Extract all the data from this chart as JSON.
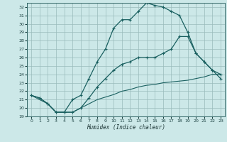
{
  "xlabel": "Humidex (Indice chaleur)",
  "xlim": [
    -0.5,
    23.5
  ],
  "ylim": [
    19,
    32.5
  ],
  "yticks": [
    19,
    20,
    21,
    22,
    23,
    24,
    25,
    26,
    27,
    28,
    29,
    30,
    31,
    32
  ],
  "xticks": [
    0,
    1,
    2,
    3,
    4,
    5,
    6,
    7,
    8,
    9,
    10,
    11,
    12,
    13,
    14,
    15,
    16,
    17,
    18,
    19,
    20,
    21,
    22,
    23
  ],
  "background_color": "#cce8e8",
  "grid_color": "#99bbbb",
  "line_color": "#1a6060",
  "line1_x": [
    0,
    1,
    2,
    3,
    4,
    5,
    6,
    7,
    8,
    9,
    10,
    11,
    12,
    13,
    14,
    15,
    16,
    17,
    18,
    19,
    20,
    21,
    22,
    23
  ],
  "line1_y": [
    21.5,
    21.2,
    20.5,
    19.5,
    19.5,
    21.0,
    21.5,
    23.5,
    25.5,
    27.0,
    29.5,
    30.5,
    30.5,
    31.5,
    32.5,
    32.2,
    32.0,
    31.5,
    31.0,
    29.0,
    26.5,
    25.5,
    24.5,
    23.5
  ],
  "line2_x": [
    0,
    2,
    3,
    4,
    5,
    6,
    7,
    8,
    9,
    10,
    11,
    12,
    13,
    14,
    15,
    16,
    17,
    18,
    19,
    20,
    21,
    22,
    23
  ],
  "line2_y": [
    21.5,
    20.5,
    19.5,
    19.5,
    19.5,
    20.0,
    20.5,
    21.0,
    21.3,
    21.6,
    22.0,
    22.2,
    22.5,
    22.7,
    22.8,
    23.0,
    23.1,
    23.2,
    23.3,
    23.5,
    23.7,
    24.0,
    24.0
  ],
  "line3_x": [
    0,
    1,
    2,
    3,
    4,
    5,
    6,
    7,
    8,
    9,
    10,
    11,
    12,
    13,
    14,
    15,
    16,
    17,
    18,
    19,
    20,
    21,
    22,
    23
  ],
  "line3_y": [
    21.5,
    21.2,
    20.5,
    19.5,
    19.5,
    19.5,
    20.0,
    21.2,
    22.5,
    23.5,
    24.5,
    25.2,
    25.5,
    26.0,
    26.0,
    26.0,
    26.5,
    27.0,
    28.5,
    28.5,
    26.5,
    25.5,
    24.5,
    24.0
  ]
}
